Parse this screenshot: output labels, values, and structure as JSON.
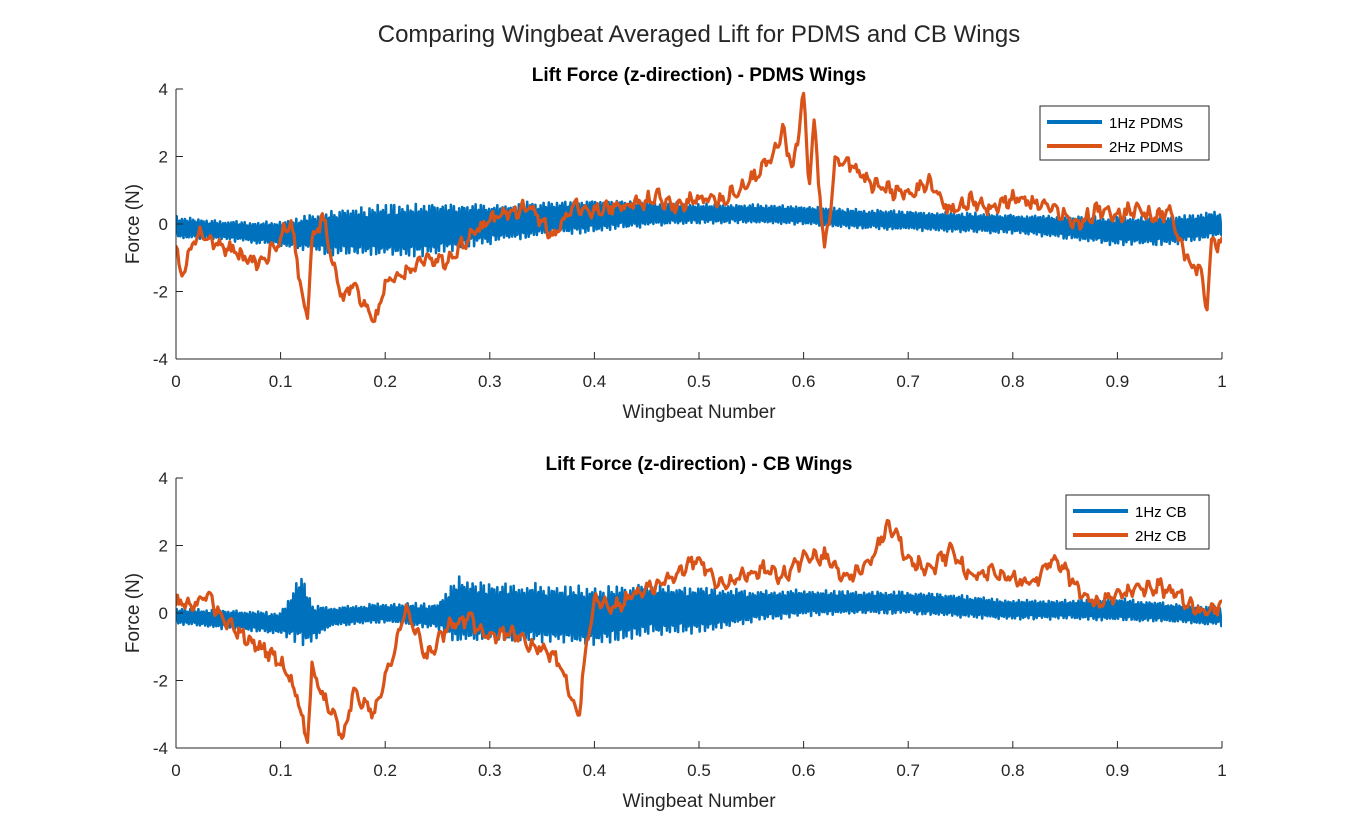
{
  "figure": {
    "supertitle": "Comparing Wingbeat Averaged Lift for PDMS and CB Wings"
  },
  "colors": {
    "series_1hz": "#0072BD",
    "series_2hz": "#D95319",
    "axis": "#262626"
  },
  "chart_data": [
    {
      "type": "line",
      "title": "Lift Force (z-direction) - PDMS Wings",
      "xlabel": "Wingbeat Number",
      "ylabel": "Force (N)",
      "xlim": [
        0,
        1
      ],
      "ylim": [
        -4,
        4
      ],
      "xticks": [
        "0",
        "0.1",
        "0.2",
        "0.3",
        "0.4",
        "0.5",
        "0.6",
        "0.7",
        "0.8",
        "0.9",
        "1"
      ],
      "yticks": [
        "-4",
        "-2",
        "0",
        "2",
        "4"
      ],
      "legend_position": "top-right",
      "grid": false,
      "series": [
        {
          "name": "1Hz PDMS",
          "style": "oscillating",
          "x": [
            0,
            0.05,
            0.1,
            0.15,
            0.2,
            0.25,
            0.3,
            0.35,
            0.4,
            0.45,
            0.5,
            0.55,
            0.6,
            0.65,
            0.7,
            0.75,
            0.8,
            0.85,
            0.9,
            0.95,
            1.0
          ],
          "center": [
            -0.1,
            -0.2,
            -0.3,
            -0.25,
            -0.2,
            -0.15,
            0.0,
            0.15,
            0.25,
            0.3,
            0.3,
            0.3,
            0.25,
            0.15,
            0.1,
            0.05,
            0.0,
            -0.1,
            -0.2,
            -0.2,
            0.0
          ],
          "amplitude": [
            0.35,
            0.3,
            0.4,
            0.7,
            0.8,
            0.8,
            0.6,
            0.55,
            0.5,
            0.4,
            0.3,
            0.3,
            0.3,
            0.3,
            0.3,
            0.3,
            0.3,
            0.35,
            0.45,
            0.45,
            0.4
          ]
        },
        {
          "name": "2Hz PDMS",
          "style": "noisy",
          "x": [
            0,
            0.005,
            0.02,
            0.04,
            0.06,
            0.08,
            0.1,
            0.11,
            0.12,
            0.125,
            0.13,
            0.14,
            0.15,
            0.16,
            0.17,
            0.18,
            0.19,
            0.2,
            0.22,
            0.24,
            0.26,
            0.28,
            0.3,
            0.32,
            0.34,
            0.36,
            0.38,
            0.4,
            0.42,
            0.44,
            0.46,
            0.48,
            0.5,
            0.52,
            0.55,
            0.57,
            0.58,
            0.59,
            0.6,
            0.605,
            0.61,
            0.62,
            0.625,
            0.63,
            0.64,
            0.66,
            0.68,
            0.7,
            0.72,
            0.74,
            0.76,
            0.78,
            0.8,
            0.82,
            0.84,
            0.86,
            0.88,
            0.9,
            0.92,
            0.94,
            0.95,
            0.96,
            0.97,
            0.98,
            0.985,
            0.99,
            1.0
          ],
          "y": [
            -0.6,
            -1.6,
            -0.3,
            -0.6,
            -0.9,
            -1.2,
            -0.4,
            0.1,
            -2.0,
            -2.9,
            -0.6,
            0.3,
            -1.3,
            -2.2,
            -1.7,
            -2.4,
            -3.0,
            -1.7,
            -1.4,
            -1.0,
            -1.1,
            -0.4,
            0.1,
            0.4,
            0.5,
            -0.4,
            0.6,
            0.4,
            0.5,
            0.6,
            0.8,
            0.5,
            0.8,
            0.7,
            1.3,
            2.0,
            2.8,
            1.5,
            3.9,
            1.2,
            2.9,
            -0.7,
            0.3,
            1.8,
            1.9,
            1.3,
            1.0,
            0.9,
            1.2,
            0.4,
            0.7,
            0.5,
            0.8,
            0.6,
            0.5,
            0.0,
            0.4,
            0.3,
            0.4,
            0.2,
            0.4,
            -0.6,
            -1.2,
            -1.4,
            -2.6,
            -0.5,
            -0.6
          ],
          "jitter": 0.22
        }
      ]
    },
    {
      "type": "line",
      "title": "Lift Force (z-direction) - CB Wings",
      "xlabel": "Wingbeat Number",
      "ylabel": "Force (N)",
      "xlim": [
        0,
        1
      ],
      "ylim": [
        -4,
        4
      ],
      "xticks": [
        "0",
        "0.1",
        "0.2",
        "0.3",
        "0.4",
        "0.5",
        "0.6",
        "0.7",
        "0.8",
        "0.9",
        "1"
      ],
      "yticks": [
        "-4",
        "-2",
        "0",
        "2",
        "4"
      ],
      "legend_position": "top-right",
      "grid": false,
      "series": [
        {
          "name": "1Hz CB",
          "style": "oscillating",
          "x": [
            0,
            0.05,
            0.1,
            0.12,
            0.13,
            0.15,
            0.2,
            0.25,
            0.27,
            0.3,
            0.35,
            0.4,
            0.45,
            0.5,
            0.55,
            0.6,
            0.65,
            0.7,
            0.75,
            0.8,
            0.85,
            0.9,
            0.95,
            1.0
          ],
          "center": [
            -0.1,
            -0.2,
            -0.3,
            0.1,
            -0.3,
            -0.1,
            0.0,
            -0.1,
            0.1,
            0.0,
            0.0,
            -0.1,
            0.1,
            0.1,
            0.2,
            0.3,
            0.3,
            0.3,
            0.2,
            0.1,
            0.1,
            0.1,
            0.0,
            -0.1
          ],
          "amplitude": [
            0.25,
            0.3,
            0.35,
            1.1,
            0.6,
            0.3,
            0.3,
            0.4,
            1.1,
            0.9,
            0.9,
            0.9,
            0.8,
            0.7,
            0.5,
            0.4,
            0.35,
            0.35,
            0.35,
            0.3,
            0.3,
            0.35,
            0.3,
            0.3
          ]
        },
        {
          "name": "2Hz CB",
          "style": "noisy",
          "x": [
            0,
            0.01,
            0.03,
            0.05,
            0.07,
            0.09,
            0.1,
            0.11,
            0.12,
            0.125,
            0.13,
            0.14,
            0.15,
            0.16,
            0.17,
            0.18,
            0.19,
            0.2,
            0.21,
            0.22,
            0.24,
            0.26,
            0.28,
            0.3,
            0.32,
            0.34,
            0.36,
            0.37,
            0.38,
            0.385,
            0.39,
            0.4,
            0.42,
            0.44,
            0.46,
            0.48,
            0.5,
            0.52,
            0.54,
            0.56,
            0.58,
            0.6,
            0.62,
            0.64,
            0.66,
            0.68,
            0.69,
            0.7,
            0.72,
            0.74,
            0.76,
            0.78,
            0.8,
            0.82,
            0.84,
            0.86,
            0.88,
            0.9,
            0.92,
            0.94,
            0.96,
            0.98,
            1.0
          ],
          "y": [
            0.3,
            0.2,
            0.5,
            -0.3,
            -0.8,
            -1.2,
            -1.5,
            -2.0,
            -2.9,
            -4.0,
            -1.6,
            -2.5,
            -3.0,
            -3.8,
            -2.2,
            -2.7,
            -3.0,
            -1.9,
            -1.0,
            0.2,
            -1.3,
            -0.4,
            -0.2,
            -0.7,
            -0.6,
            -0.9,
            -1.2,
            -1.8,
            -2.8,
            -3.1,
            -1.5,
            0.3,
            0.2,
            0.6,
            0.8,
            1.2,
            1.6,
            0.8,
            1.1,
            1.3,
            1.1,
            1.6,
            1.7,
            1.0,
            1.4,
            2.5,
            2.3,
            1.5,
            1.3,
            1.8,
            1.1,
            1.3,
            1.0,
            0.8,
            1.7,
            0.8,
            0.3,
            0.5,
            0.7,
            0.8,
            0.5,
            0.0,
            0.2
          ],
          "jitter": 0.22
        }
      ]
    }
  ]
}
